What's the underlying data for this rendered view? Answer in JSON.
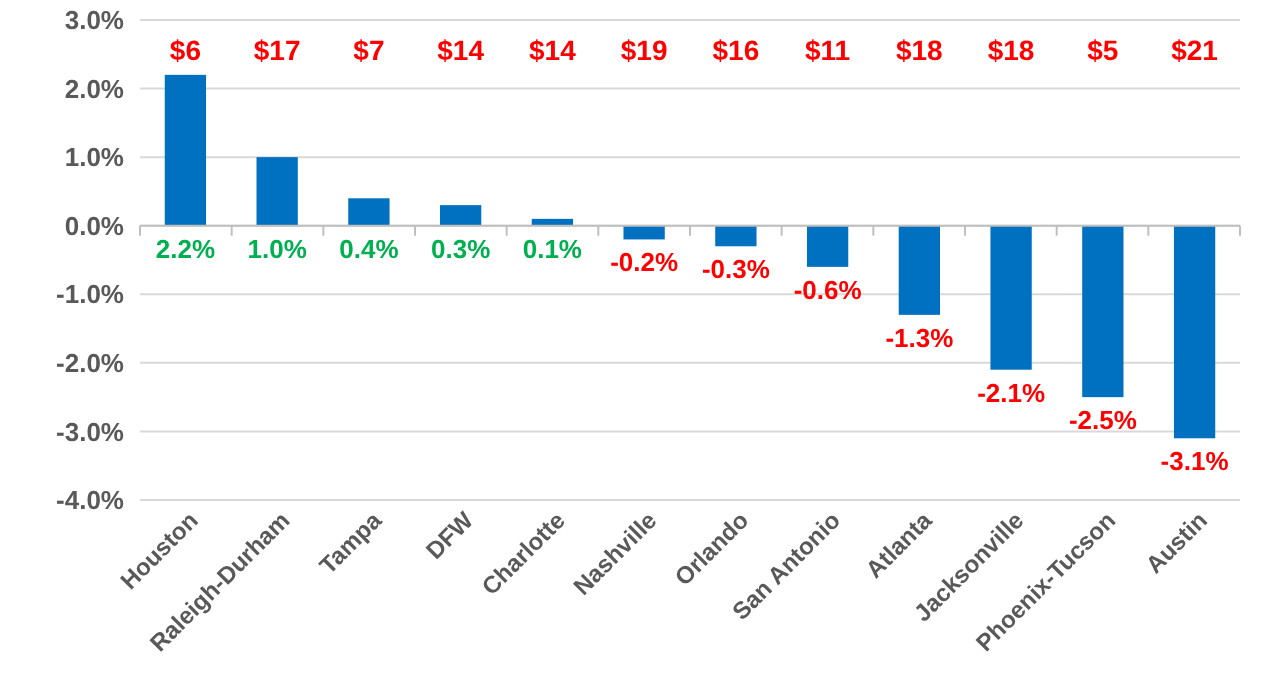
{
  "chart_data": {
    "type": "bar",
    "categories": [
      "Houston",
      "Raleigh-Durham",
      "Tampa",
      "DFW",
      "Charlotte",
      "Nashville",
      "Orlando",
      "San Antonio",
      "Atlanta",
      "Jacksonville",
      "Phoenix-Tucson",
      "Austin"
    ],
    "values": [
      2.2,
      1.0,
      0.4,
      0.3,
      0.1,
      -0.2,
      -0.3,
      -0.6,
      -1.3,
      -2.1,
      -2.5,
      -3.1
    ],
    "value_labels": [
      "2.2%",
      "1.0%",
      "0.4%",
      "0.3%",
      "0.1%",
      "-0.2%",
      "-0.3%",
      "-0.6%",
      "-1.3%",
      "-2.1%",
      "-2.5%",
      "-3.1%"
    ],
    "color": "#0070c0",
    "ylim": [
      -4,
      3
    ],
    "yticks": [
      {
        "value": -4,
        "label": "-4.0%"
      },
      {
        "value": -3,
        "label": "-3.0%"
      },
      {
        "value": -2,
        "label": "-2.0%"
      },
      {
        "value": -1,
        "label": "-1.0%"
      },
      {
        "value": 0,
        "label": "0.0%"
      },
      {
        "value": 1,
        "label": "1.0%"
      },
      {
        "value": 2,
        "label": "2.0%"
      },
      {
        "value": 3,
        "label": "3.0%"
      }
    ],
    "grid": "y",
    "annotations": [
      "$6",
      "$17",
      "$7",
      "$14",
      "$14",
      "$19",
      "$16",
      "$11",
      "$18",
      "$18",
      "$5",
      "$21"
    ]
  }
}
